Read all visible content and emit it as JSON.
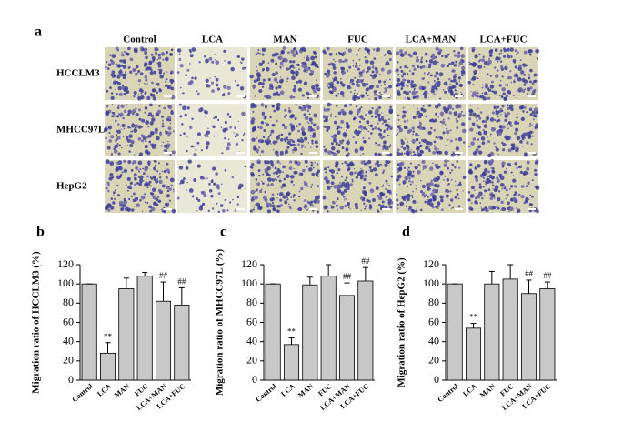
{
  "panel_a": {
    "label": "a",
    "columns": [
      "Control",
      "LCA",
      "MAN",
      "FUC",
      "LCA+MAN",
      "LCA+FUC"
    ],
    "rows": [
      "HCCLM3",
      "MHCC97L",
      "HepG2"
    ]
  },
  "chart_data": [
    {
      "type": "bar",
      "panel": "b",
      "ylabel": "Migration ratio of HCCLM3 (%)",
      "categories": [
        "Control",
        "LCA",
        "MAN",
        "FUC",
        "LCA+MAN",
        "LCA+FUC"
      ],
      "values": [
        100,
        28,
        95,
        108,
        82,
        78
      ],
      "errors": [
        0,
        11,
        11,
        4,
        20,
        18
      ],
      "significance": [
        null,
        "**",
        null,
        null,
        "##",
        "##"
      ],
      "color": "#c8c8c8",
      "ylim": [
        0,
        120
      ],
      "yticks": [
        0,
        20,
        40,
        60,
        80,
        100,
        120
      ]
    },
    {
      "type": "bar",
      "panel": "c",
      "ylabel": "Migration ratio of MHCC97L (%)",
      "categories": [
        "Control",
        "LCA",
        "MAN",
        "FUC",
        "LCA+MAN",
        "LCA+FUC"
      ],
      "values": [
        100,
        37,
        99,
        108,
        88,
        103
      ],
      "errors": [
        0,
        7,
        8,
        12,
        13,
        14
      ],
      "significance": [
        null,
        "**",
        null,
        null,
        "##",
        "##"
      ],
      "color": "#c8c8c8",
      "ylim": [
        0,
        120
      ],
      "yticks": [
        0,
        20,
        40,
        60,
        80,
        100,
        120
      ]
    },
    {
      "type": "bar",
      "panel": "d",
      "ylabel": "Migration ratio of HepG2 (%)",
      "categories": [
        "Control",
        "LCA",
        "MAN",
        "FUC",
        "LCA+MAN",
        "LCA+FUC"
      ],
      "values": [
        100,
        54,
        100,
        105,
        90,
        95
      ],
      "errors": [
        0,
        5,
        13,
        15,
        14,
        7
      ],
      "significance": [
        null,
        "**",
        null,
        null,
        "##",
        "##"
      ],
      "color": "#c8c8c8",
      "ylim": [
        0,
        120
      ],
      "yticks": [
        0,
        20,
        40,
        60,
        80,
        100,
        120
      ]
    }
  ]
}
